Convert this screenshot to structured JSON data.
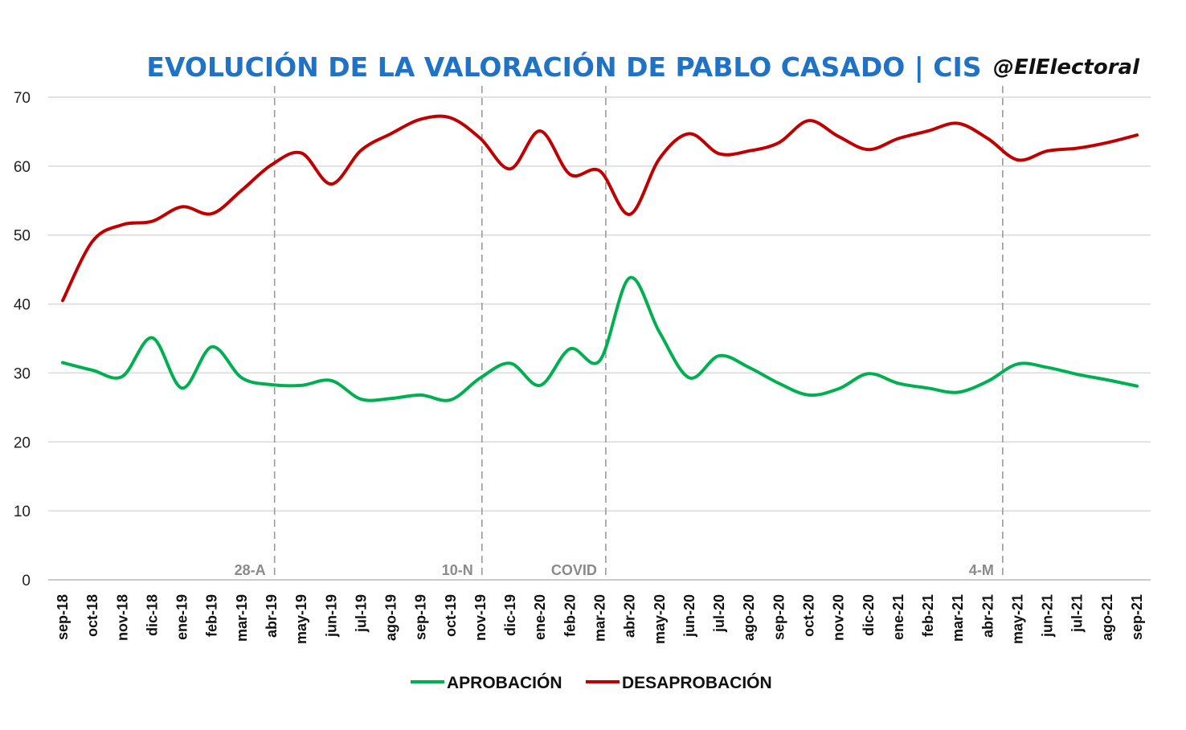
{
  "chart_data": {
    "type": "line",
    "title": "EVOLUCIÓN DE LA VALORACIÓN DE PABLO CASADO | CIS",
    "source_tag": "@ElElectoral",
    "xlabel": "",
    "ylabel": "",
    "ylim": [
      0,
      70
    ],
    "yticks": [
      0,
      10,
      20,
      30,
      40,
      50,
      60,
      70
    ],
    "grid": true,
    "legend_position": "bottom",
    "categories": [
      "sep-18",
      "oct-18",
      "nov-18",
      "dic-18",
      "ene-19",
      "feb-19",
      "mar-19",
      "abr-19",
      "may-19",
      "jun-19",
      "jul-19",
      "ago-19",
      "sep-19",
      "oct-19",
      "nov-19",
      "dic-19",
      "ene-20",
      "feb-20",
      "mar-20",
      "abr-20",
      "may-20",
      "jun-20",
      "jul-20",
      "ago-20",
      "sep-20",
      "oct-20",
      "nov-20",
      "dic-20",
      "ene-21",
      "feb-21",
      "mar-21",
      "abr-21",
      "may-21",
      "jun-21",
      "jul-21",
      "ago-21",
      "sep-21"
    ],
    "series": [
      {
        "name": "APROBACIÓN",
        "color": "#00b050",
        "values": [
          31.5,
          30.4,
          29.5,
          35.1,
          27.8,
          33.8,
          29.3,
          28.3,
          28.2,
          28.9,
          26.2,
          26.3,
          26.8,
          26.1,
          29.3,
          31.4,
          28.2,
          33.5,
          31.8,
          43.8,
          35.9,
          29.3,
          32.5,
          30.8,
          28.5,
          26.8,
          27.7,
          29.9,
          28.5,
          27.8,
          27.2,
          28.8,
          31.3,
          30.8,
          29.8,
          29.0,
          28.1
        ]
      },
      {
        "name": "DESAPROBACIÓN",
        "color": "#c00000",
        "values": [
          40.5,
          49.1,
          51.5,
          52.0,
          54.1,
          53.1,
          56.5,
          60.2,
          61.9,
          57.4,
          62.3,
          64.7,
          66.8,
          67.0,
          64.0,
          59.6,
          65.1,
          58.8,
          59.3,
          53.0,
          61.1,
          64.7,
          61.8,
          62.2,
          63.4,
          66.6,
          64.3,
          62.4,
          64.0,
          65.1,
          66.2,
          64.0,
          60.9,
          62.2,
          62.6,
          63.4,
          64.5
        ]
      }
    ],
    "annotations": [
      {
        "label": "28-A",
        "at_category_index": 7.1
      },
      {
        "label": "10-N",
        "at_category_index": 14.05
      },
      {
        "label": "COVID",
        "at_category_index": 18.2
      },
      {
        "label": "4-M",
        "at_category_index": 31.5
      }
    ]
  }
}
